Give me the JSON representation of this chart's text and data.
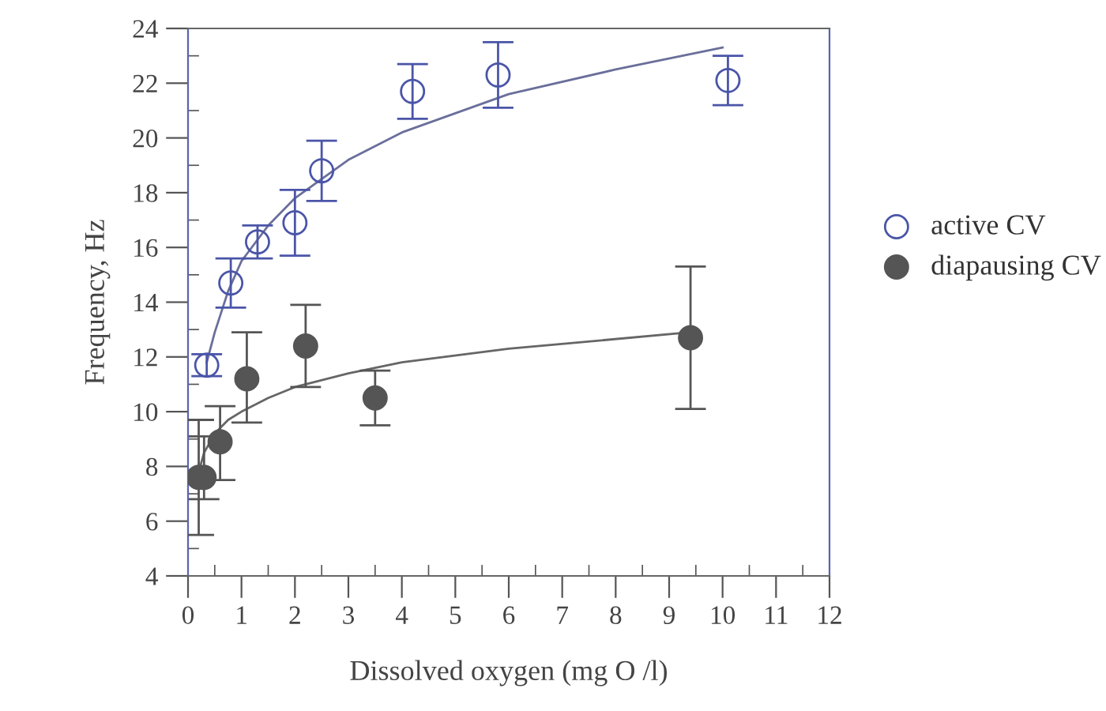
{
  "chart_data": {
    "type": "scatter",
    "xlabel": "Dissolved oxygen (mg O /l)",
    "ylabel": "Frequency, Hz",
    "xlim": [
      0,
      12
    ],
    "xticks": [
      0,
      1,
      2,
      3,
      4,
      5,
      6,
      7,
      8,
      9,
      10,
      11,
      12
    ],
    "ylim": [
      4,
      24
    ],
    "yticks": [
      4,
      6,
      8,
      10,
      12,
      14,
      16,
      18,
      20,
      22,
      24
    ],
    "grid": false,
    "legend": "right",
    "series": [
      {
        "name": "active CV",
        "color": "#4a55a8",
        "marker": "circle",
        "x": [
          0.35,
          0.8,
          1.3,
          2.0,
          2.5,
          4.2,
          5.8,
          10.1
        ],
        "values": [
          11.7,
          14.7,
          16.2,
          16.9,
          18.8,
          21.7,
          22.3,
          22.1
        ],
        "errors": [
          0.4,
          0.9,
          0.6,
          1.2,
          1.1,
          1.0,
          1.2,
          0.9
        ]
      },
      {
        "name": "diapausing CV",
        "color": "#555555",
        "marker": "circle",
        "x": [
          0.2,
          0.3,
          0.6,
          1.1,
          2.2,
          3.5,
          9.4
        ],
        "values": [
          7.6,
          7.6,
          8.9,
          11.2,
          12.4,
          10.5,
          12.7
        ],
        "errors": [
          [
            5.5,
            9.7
          ],
          [
            6.8,
            9.1
          ],
          [
            7.5,
            10.2
          ],
          [
            9.6,
            12.9
          ],
          [
            10.9,
            13.9
          ],
          [
            9.5,
            11.5
          ],
          [
            10.1,
            15.3
          ]
        ]
      },
      {
        "type": "line",
        "color": "#6a6f9a",
        "marker": "none",
        "x": [
          0.35,
          0.5,
          0.75,
          1,
          1.5,
          2,
          3,
          4,
          6,
          8,
          10
        ],
        "values": [
          11.8,
          12.9,
          14.4,
          15.5,
          16.8,
          17.8,
          19.2,
          20.2,
          21.6,
          22.5,
          23.3
        ]
      },
      {
        "type": "line",
        "color": "#666666",
        "marker": "none",
        "x": [
          0.2,
          0.3,
          0.5,
          0.75,
          1,
          1.5,
          2,
          3,
          4,
          6,
          9.4
        ],
        "values": [
          7.8,
          8.5,
          9.2,
          9.7,
          10.0,
          10.5,
          10.9,
          11.4,
          11.8,
          12.3,
          12.9
        ]
      }
    ]
  }
}
